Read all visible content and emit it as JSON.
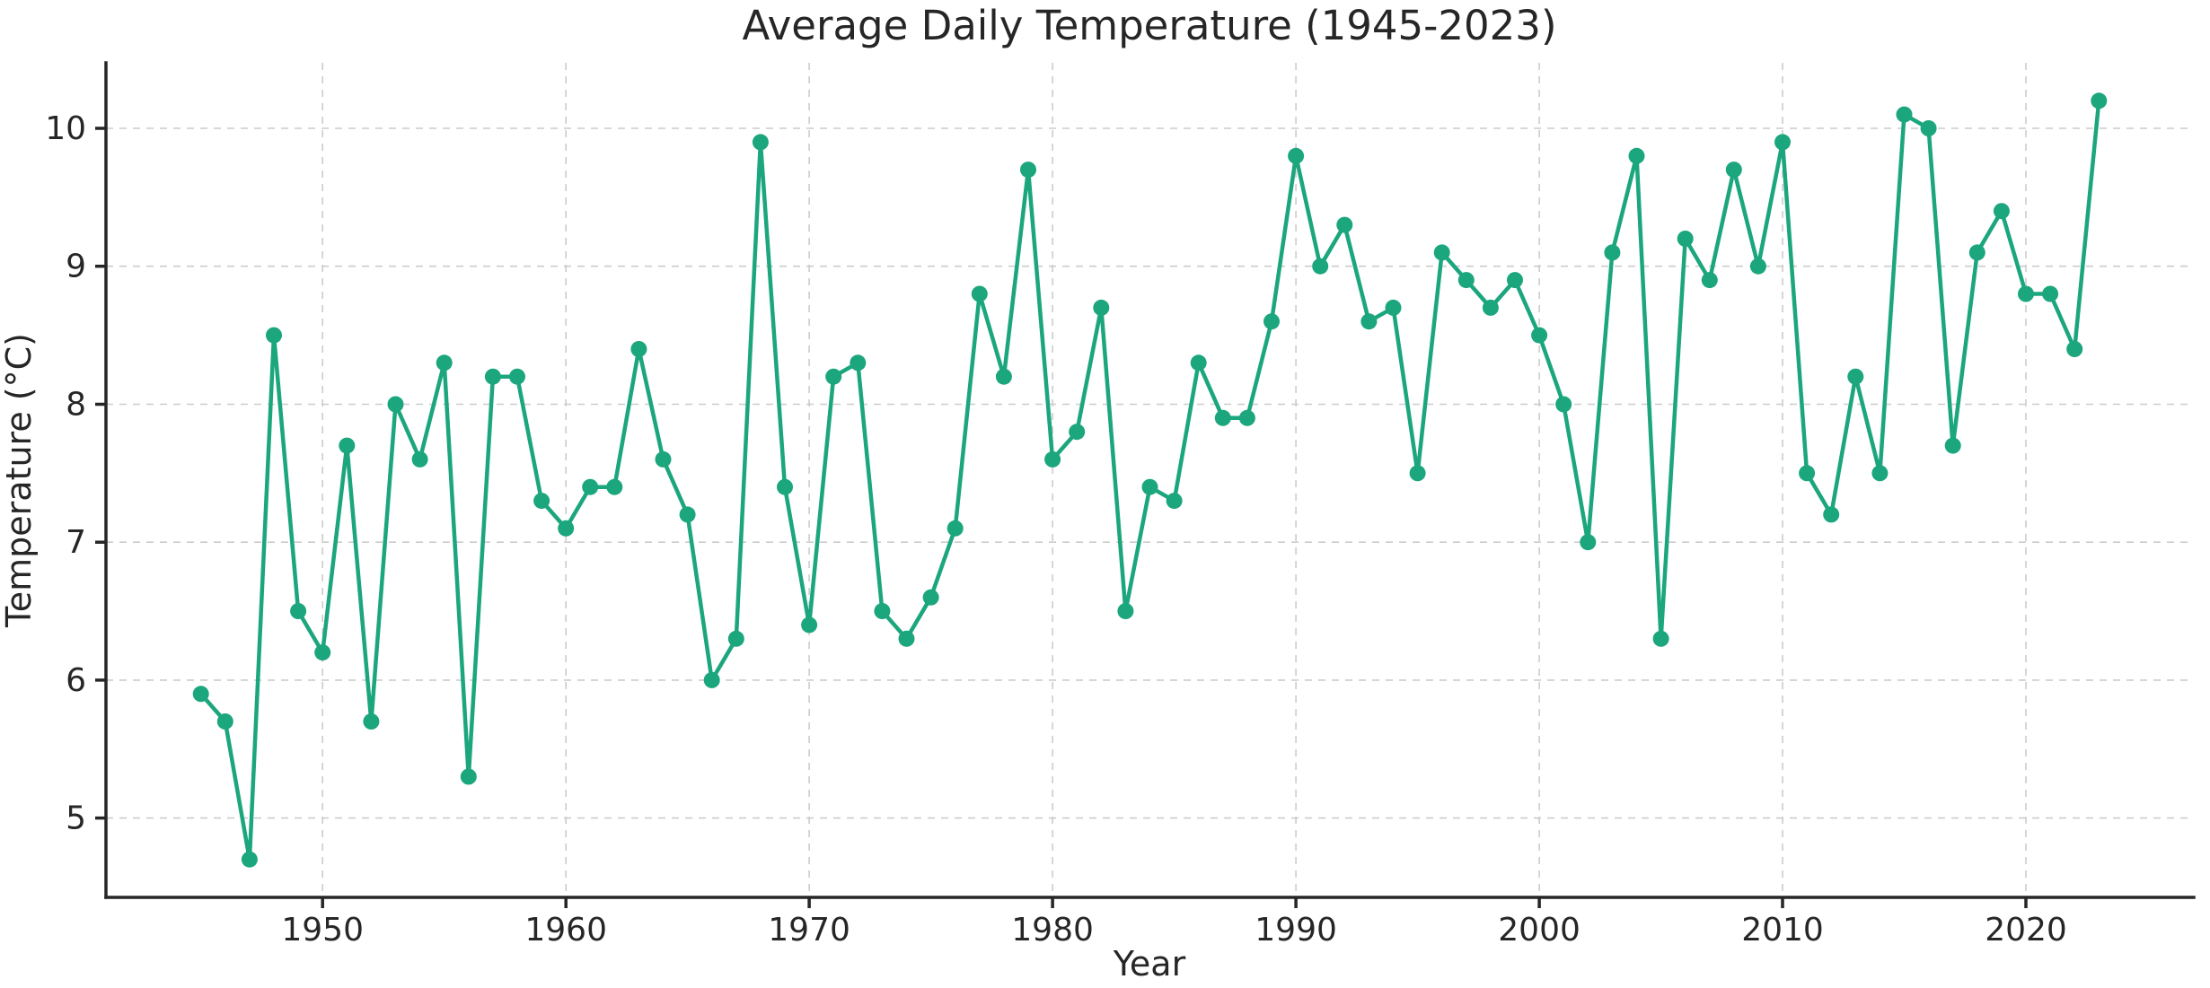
{
  "figure": {
    "title": "Average Daily Temperature (1945-2023)",
    "background_color": "#ffffff",
    "text_color": "#262626",
    "grid_color": "#cccccc",
    "spine_color": "#262626"
  },
  "chart_data": {
    "type": "line",
    "title": "Average Daily Temperature (1945-2023)",
    "xlabel": "Year",
    "ylabel": "Temperature (°C)",
    "series_name": "Average Daily Temperature",
    "line_color": "#1ba67d",
    "marker": "circle",
    "grid": true,
    "legend_position": "none",
    "xlim": [
      1941.1,
      2026.9
    ],
    "ylim": [
      4.425,
      10.475
    ],
    "x_ticks": [
      1950,
      1960,
      1970,
      1980,
      1990,
      2000,
      2010,
      2020
    ],
    "y_ticks": [
      5,
      6,
      7,
      8,
      9,
      10
    ],
    "x": [
      1945,
      1946,
      1947,
      1948,
      1949,
      1950,
      1951,
      1952,
      1953,
      1954,
      1955,
      1956,
      1957,
      1958,
      1959,
      1960,
      1961,
      1962,
      1963,
      1964,
      1965,
      1966,
      1967,
      1968,
      1969,
      1970,
      1971,
      1972,
      1973,
      1974,
      1975,
      1976,
      1977,
      1978,
      1979,
      1980,
      1981,
      1982,
      1983,
      1984,
      1985,
      1986,
      1987,
      1988,
      1989,
      1990,
      1991,
      1992,
      1993,
      1994,
      1995,
      1996,
      1997,
      1998,
      1999,
      2000,
      2001,
      2002,
      2003,
      2004,
      2005,
      2006,
      2007,
      2008,
      2009,
      2010,
      2011,
      2012,
      2013,
      2014,
      2015,
      2016,
      2017,
      2018,
      2019,
      2020,
      2021,
      2022,
      2023
    ],
    "values": [
      5.9,
      5.7,
      4.7,
      8.5,
      6.5,
      6.2,
      7.7,
      5.7,
      8.0,
      7.6,
      8.3,
      5.3,
      8.2,
      8.2,
      7.3,
      7.1,
      7.4,
      7.4,
      8.4,
      7.6,
      7.2,
      6.0,
      6.3,
      9.9,
      7.4,
      6.4,
      8.2,
      8.3,
      6.5,
      6.3,
      6.6,
      7.1,
      8.8,
      8.2,
      9.7,
      7.6,
      7.8,
      8.7,
      6.5,
      7.4,
      7.3,
      8.3,
      7.9,
      7.9,
      8.6,
      9.8,
      9.0,
      9.3,
      8.6,
      8.7,
      7.5,
      9.1,
      8.9,
      8.7,
      8.9,
      8.5,
      8.0,
      7.0,
      9.1,
      9.8,
      6.3,
      9.2,
      8.9,
      9.7,
      9.0,
      9.9,
      7.5,
      7.2,
      8.2,
      7.5,
      10.1,
      10.0,
      7.7,
      9.1,
      9.4,
      8.8,
      8.8,
      8.4,
      10.2
    ]
  }
}
